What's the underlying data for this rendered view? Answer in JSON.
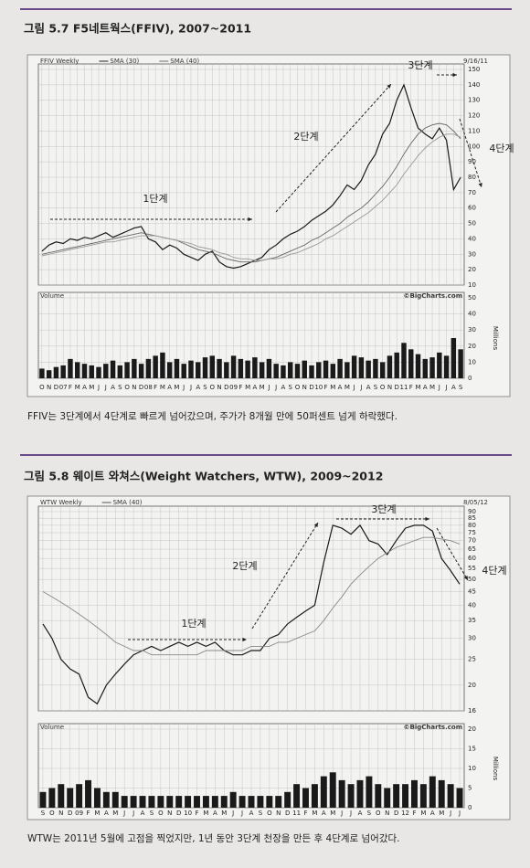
{
  "chart_data": [
    {
      "type": "line",
      "title": "그림 5.7  F5네트웍스(FFIV), 2007~2011",
      "caption": "FFIV는 3단계에서 4단계로 빠르게 넘어갔으며, 주가가 8개월 만에 50퍼센트 넘게 하락했다.",
      "date_label": "9/16/11",
      "watermark": "©BigCharts.com",
      "annotations": [
        "1단계",
        "2단계",
        "3단계",
        "4단계"
      ],
      "categories": [
        "O",
        "N",
        "D",
        "07",
        "F",
        "M",
        "A",
        "M",
        "J",
        "J",
        "A",
        "S",
        "O",
        "N",
        "D",
        "08",
        "F",
        "M",
        "A",
        "M",
        "J",
        "J",
        "A",
        "S",
        "O",
        "N",
        "D",
        "09",
        "F",
        "M",
        "A",
        "M",
        "J",
        "J",
        "A",
        "S",
        "O",
        "N",
        "D",
        "10",
        "F",
        "M",
        "A",
        "M",
        "J",
        "J",
        "A",
        "S",
        "O",
        "N",
        "D",
        "11",
        "F",
        "M",
        "A",
        "M",
        "J",
        "J",
        "A",
        "S"
      ],
      "series": [
        {
          "name": "FFIV Weekly",
          "color": "#1a1a1a",
          "values": [
            32,
            36,
            38,
            37,
            40,
            39,
            41,
            40,
            42,
            44,
            41,
            43,
            45,
            47,
            48,
            40,
            38,
            33,
            36,
            34,
            30,
            28,
            26,
            30,
            32,
            25,
            22,
            21,
            22,
            24,
            26,
            28,
            33,
            36,
            40,
            43,
            45,
            48,
            52,
            55,
            58,
            62,
            68,
            75,
            72,
            78,
            88,
            95,
            108,
            115,
            130,
            140,
            125,
            112,
            108,
            105,
            112,
            104,
            72,
            80
          ]
        },
        {
          "name": "SMA (30)",
          "color": "#666666",
          "values": [
            30,
            31,
            32,
            33,
            34,
            35,
            36,
            37,
            38,
            39,
            40,
            41,
            42,
            43,
            44,
            43,
            42,
            41,
            40,
            39,
            37,
            35,
            33,
            32,
            31,
            29,
            27,
            26,
            25,
            25,
            25,
            26,
            27,
            28,
            30,
            32,
            34,
            36,
            39,
            41,
            44,
            47,
            50,
            54,
            57,
            60,
            64,
            69,
            74,
            80,
            87,
            95,
            102,
            108,
            112,
            114,
            115,
            114,
            110,
            105
          ]
        },
        {
          "name": "SMA (40)",
          "color": "#999999",
          "values": [
            29,
            30,
            31,
            32,
            33,
            34,
            35,
            36,
            37,
            38,
            38,
            39,
            40,
            41,
            42,
            42,
            42,
            41,
            40,
            39,
            38,
            37,
            35,
            34,
            33,
            31,
            30,
            28,
            27,
            27,
            26,
            26,
            27,
            27,
            28,
            30,
            31,
            33,
            35,
            37,
            40,
            42,
            45,
            48,
            51,
            54,
            57,
            61,
            65,
            70,
            75,
            82,
            88,
            94,
            99,
            103,
            106,
            108,
            108,
            106
          ]
        }
      ],
      "ylim": [
        10,
        150
      ],
      "yticks": [
        10,
        20,
        30,
        40,
        50,
        60,
        70,
        80,
        90,
        100,
        110,
        120,
        130,
        140,
        150
      ],
      "log_scale": false,
      "grid": true,
      "volume": {
        "label": "Volume",
        "unit": "Millions",
        "color": "#1a1a1a",
        "ylim": [
          0,
          50
        ],
        "yticks": [
          0,
          10,
          20,
          30,
          40,
          50
        ],
        "values": [
          6,
          5,
          7,
          8,
          12,
          10,
          9,
          8,
          7,
          9,
          11,
          8,
          10,
          12,
          9,
          12,
          14,
          16,
          10,
          12,
          9,
          11,
          10,
          13,
          14,
          12,
          10,
          14,
          12,
          11,
          13,
          10,
          12,
          9,
          8,
          10,
          9,
          11,
          8,
          10,
          11,
          9,
          12,
          10,
          14,
          13,
          11,
          12,
          10,
          14,
          16,
          22,
          18,
          15,
          12,
          13,
          16,
          14,
          25,
          18
        ]
      }
    },
    {
      "type": "line",
      "title": "그림 5.8  웨이트 와쳐스(Weight Watchers, WTW), 2009~2012",
      "caption": "WTW는 2011년 5월에 고점을 찍었지만, 1년 동안 3단계 천장을 만든 후 4단계로 넘어갔다.",
      "date_label": "8/05/12",
      "watermark": "©BigCharts.com",
      "annotations": [
        "1단계",
        "2단계",
        "3단계",
        "4단계"
      ],
      "categories": [
        "S",
        "O",
        "N",
        "D",
        "09",
        "F",
        "M",
        "A",
        "M",
        "J",
        "J",
        "A",
        "S",
        "O",
        "N",
        "D",
        "10",
        "F",
        "M",
        "A",
        "M",
        "J",
        "J",
        "A",
        "S",
        "O",
        "N",
        "D",
        "11",
        "F",
        "M",
        "A",
        "M",
        "J",
        "J",
        "A",
        "S",
        "O",
        "N",
        "D",
        "12",
        "F",
        "M",
        "A",
        "M",
        "J",
        "J"
      ],
      "series": [
        {
          "name": "WTW Weekly",
          "color": "#1a1a1a",
          "values": [
            34,
            30,
            25,
            23,
            22,
            18,
            17,
            20,
            22,
            24,
            26,
            27,
            28,
            27,
            28,
            29,
            28,
            29,
            28,
            29,
            27,
            26,
            26,
            27,
            27,
            30,
            31,
            34,
            36,
            38,
            40,
            58,
            80,
            78,
            74,
            80,
            70,
            68,
            62,
            70,
            78,
            80,
            80,
            76,
            60,
            54,
            48
          ]
        },
        {
          "name": "SMA (40)",
          "color": "#888888",
          "values": [
            45,
            43,
            41,
            39,
            37,
            35,
            33,
            31,
            29,
            28,
            27,
            27,
            26,
            26,
            26,
            26,
            26,
            26,
            27,
            27,
            27,
            27,
            27,
            28,
            28,
            28,
            29,
            29,
            30,
            31,
            32,
            35,
            39,
            43,
            48,
            52,
            56,
            60,
            63,
            66,
            68,
            70,
            72,
            72,
            71,
            70,
            68
          ]
        }
      ],
      "ylim": [
        16,
        90
      ],
      "yticks": [
        16,
        20,
        25,
        30,
        35,
        40,
        45,
        50,
        55,
        60,
        65,
        70,
        75,
        80,
        85,
        90
      ],
      "log_scale": true,
      "grid": true,
      "volume": {
        "label": "Volume",
        "unit": "Millions",
        "color": "#1a1a1a",
        "ylim": [
          0,
          20
        ],
        "yticks": [
          0,
          5,
          10,
          15,
          20
        ],
        "values": [
          4,
          5,
          6,
          5,
          6,
          7,
          5,
          4,
          4,
          3,
          3,
          3,
          3,
          3,
          3,
          3,
          3,
          3,
          3,
          3,
          3,
          4,
          3,
          3,
          3,
          3,
          3,
          4,
          6,
          5,
          6,
          8,
          9,
          7,
          6,
          7,
          8,
          6,
          5,
          6,
          6,
          7,
          6,
          8,
          7,
          6,
          5
        ]
      }
    }
  ]
}
